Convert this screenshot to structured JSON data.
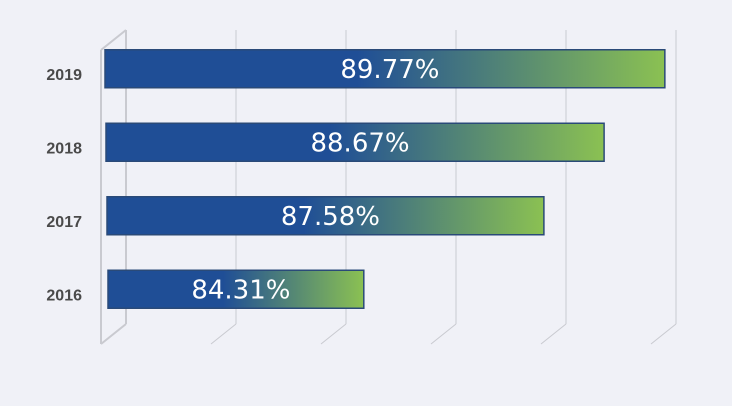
{
  "chart_data": {
    "type": "bar",
    "orientation": "horizontal",
    "categories": [
      "2016",
      "2017",
      "2018",
      "2019"
    ],
    "values": [
      84.31,
      87.58,
      88.67,
      89.77
    ],
    "value_labels": [
      "84.31%",
      "87.58%",
      "88.67%",
      "89.77%"
    ],
    "title": "",
    "xlabel": "",
    "ylabel": "",
    "xlim": [
      80,
      90
    ],
    "grid": true,
    "legend": "none",
    "style": "3d",
    "colors": {
      "bar_start": "#1f4e96",
      "bar_end": "#8bc152",
      "bar_border": "#2a4a78",
      "grid": "#c9cad0",
      "background": "#f0f1f7",
      "category_text": "#4a4a4a",
      "value_text": "#ffffff"
    }
  }
}
